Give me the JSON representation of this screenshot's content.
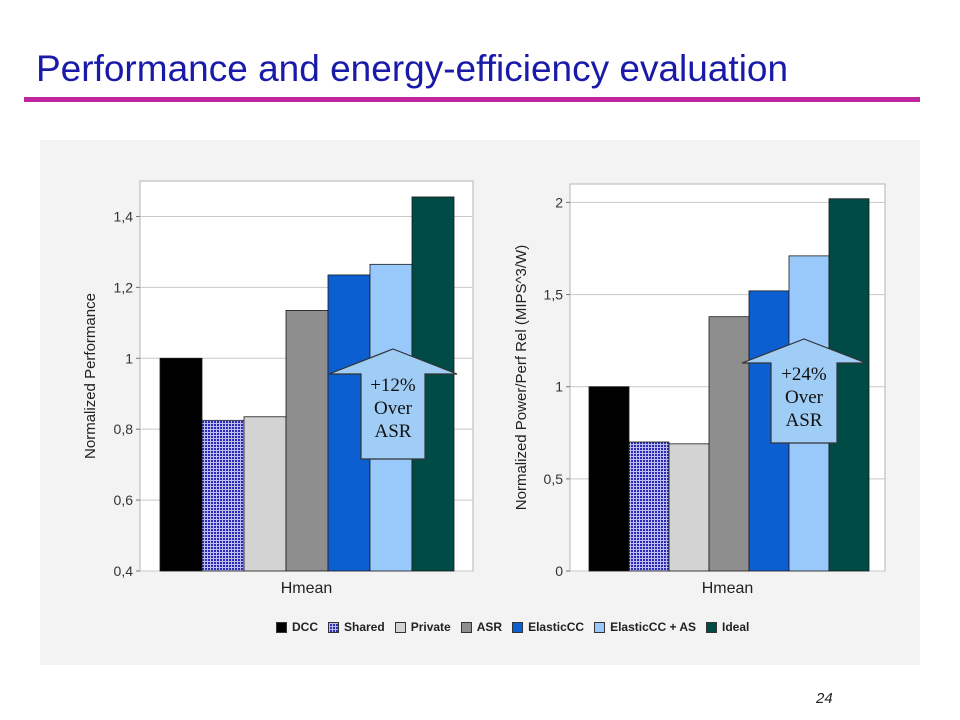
{
  "slide": {
    "title": "Performance and energy-efficiency evaluation",
    "page_number": "24",
    "title_color": "#1a1aa8",
    "rule_color": "#c0249e"
  },
  "chart_data": [
    {
      "type": "bar",
      "ylabel": "Normalized Performance",
      "xlabel": "",
      "categories": [
        "Hmean"
      ],
      "series": [
        {
          "name": "DCC",
          "values": [
            1.0
          ]
        },
        {
          "name": "Shared",
          "values": [
            0.825
          ]
        },
        {
          "name": "Private",
          "values": [
            0.835
          ]
        },
        {
          "name": "ASR",
          "values": [
            1.135
          ]
        },
        {
          "name": "ElasticCC",
          "values": [
            1.235
          ]
        },
        {
          "name": "ElasticCC + AS",
          "values": [
            1.265
          ]
        },
        {
          "name": "Ideal",
          "values": [
            1.455
          ]
        }
      ],
      "ylim": [
        0.4,
        1.5
      ],
      "yticks": [
        "0,4",
        "0,6",
        "0,8",
        "1",
        "1,2",
        "1,4"
      ],
      "grid": true,
      "annotation": [
        "+12%",
        "Over",
        "ASR"
      ]
    },
    {
      "type": "bar",
      "ylabel": "Normalized Power/Perf Rel (MIPS^3/W)",
      "xlabel": "",
      "categories": [
        "Hmean"
      ],
      "series": [
        {
          "name": "DCC",
          "values": [
            1.0
          ]
        },
        {
          "name": "Shared",
          "values": [
            0.7
          ]
        },
        {
          "name": "Private",
          "values": [
            0.69
          ]
        },
        {
          "name": "ASR",
          "values": [
            1.38
          ]
        },
        {
          "name": "ElasticCC",
          "values": [
            1.52
          ]
        },
        {
          "name": "ElasticCC + AS",
          "values": [
            1.71
          ]
        },
        {
          "name": "Ideal",
          "values": [
            2.02
          ]
        }
      ],
      "ylim": [
        0,
        2.1
      ],
      "yticks": [
        "0",
        "0,5",
        "1",
        "1,5",
        "2"
      ],
      "grid": true,
      "annotation": [
        "+24%",
        "Over",
        "ASR"
      ]
    }
  ],
  "legend": {
    "placement": "bottom",
    "entries": [
      "DCC",
      "Shared",
      "Private",
      "ASR",
      "ElasticCC",
      "ElasticCC + AS",
      "Ideal"
    ],
    "colors": [
      "#000000",
      "#2a2ab4",
      "#d3d3d3",
      "#8e8e8e",
      "#0b5fd0",
      "#99c9fa",
      "#004b45"
    ]
  }
}
